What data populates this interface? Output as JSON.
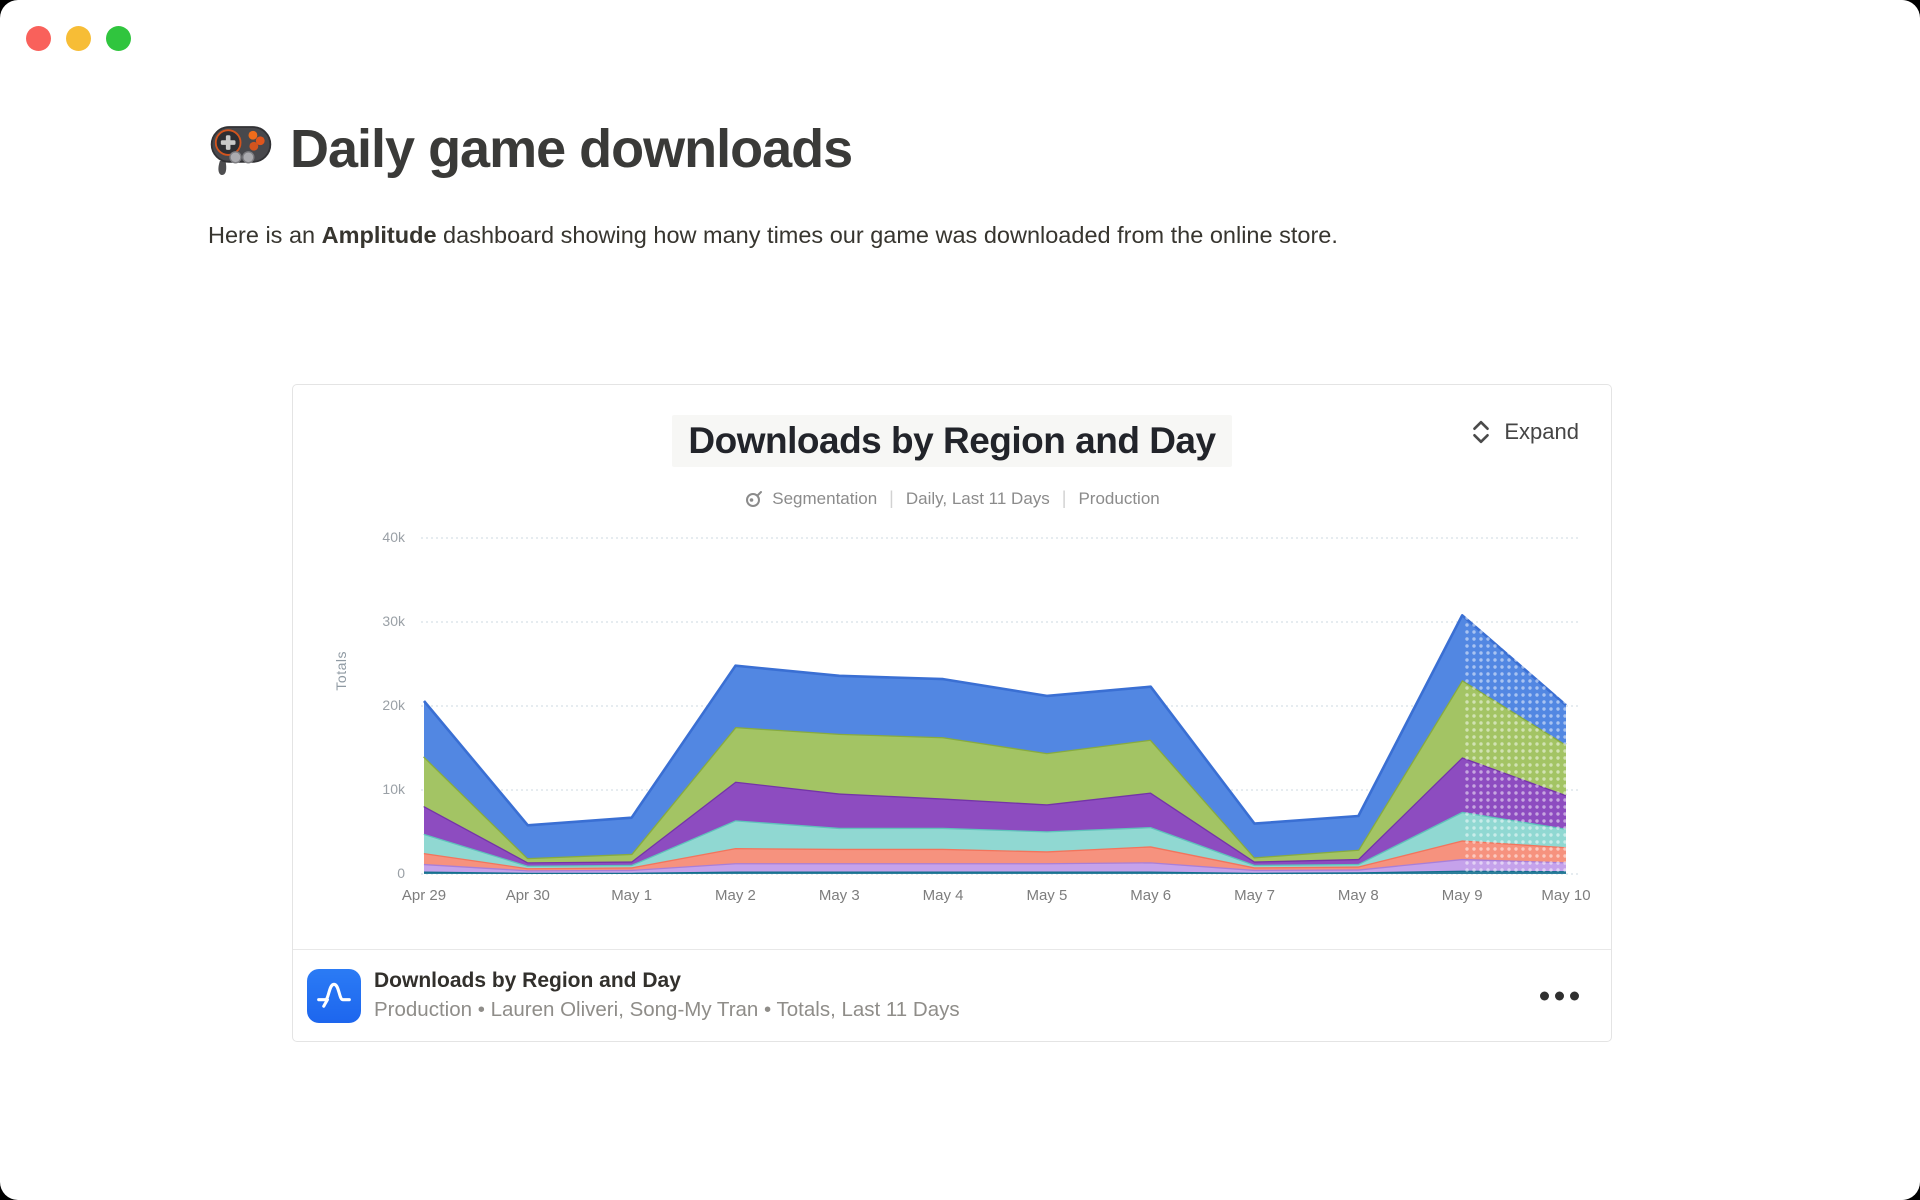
{
  "window": {
    "traffic_lights": [
      "close",
      "minimize",
      "zoom"
    ]
  },
  "page": {
    "title": "Daily game downloads",
    "title_emoji": "game-controller",
    "intro": {
      "prefix": "Here is an ",
      "bold": "Amplitude",
      "suffix": " dashboard showing how many times our game was downloaded from the online store."
    }
  },
  "card": {
    "expand_label": "Expand",
    "chart_title": "Downloads by Region and Day",
    "subtitle": {
      "icon": "segmentation-icon",
      "items": [
        "Segmentation",
        "Daily, Last 11 Days",
        "Production"
      ]
    },
    "footer": {
      "title": "Downloads by Region and Day",
      "meta": "Production • Lauren Oliveri, Song-My Tran • Totals, Last 11 Days"
    }
  },
  "chart_data": {
    "type": "area",
    "stacked": true,
    "title": "Downloads by Region and Day",
    "xlabel": "",
    "ylabel": "Totals",
    "ylim": [
      0,
      40000
    ],
    "yticks": [
      0,
      10000,
      20000,
      30000,
      40000
    ],
    "ytick_labels": [
      "0",
      "10k",
      "20k",
      "30k",
      "40k"
    ],
    "x": [
      "Apr 29",
      "Apr 30",
      "May 1",
      "May 2",
      "May 3",
      "May 4",
      "May 5",
      "May 6",
      "May 7",
      "May 8",
      "May 9",
      "May 10"
    ],
    "grid": "dotted-horizontal",
    "legend": "none",
    "last_segment_style": "dotted",
    "series": [
      {
        "name": "series-1-dark-teal",
        "fill": "#2d7f9b",
        "stroke": "#156e8d",
        "values": [
          300,
          150,
          150,
          300,
          300,
          300,
          300,
          300,
          150,
          200,
          400,
          350
        ]
      },
      {
        "name": "series-2-lavender",
        "fill": "#c5a2eb",
        "stroke": "#a87fd8",
        "values": [
          900,
          300,
          350,
          1000,
          1000,
          1000,
          1000,
          1100,
          350,
          350,
          1400,
          1050
        ]
      },
      {
        "name": "series-3-salmon",
        "fill": "#f6927e",
        "stroke": "#f3745c",
        "values": [
          1300,
          250,
          300,
          1800,
          1700,
          1700,
          1400,
          1900,
          300,
          350,
          2200,
          1800
        ]
      },
      {
        "name": "series-4-teal",
        "fill": "#90d8d2",
        "stroke": "#5fc3bb",
        "values": [
          2300,
          300,
          300,
          3300,
          2500,
          2500,
          2400,
          2300,
          300,
          300,
          3400,
          2200
        ]
      },
      {
        "name": "series-5-purple",
        "fill": "#8d4cc0",
        "stroke": "#7434a8",
        "values": [
          3300,
          400,
          400,
          4600,
          4100,
          3500,
          3200,
          4100,
          400,
          600,
          6500,
          4000
        ]
      },
      {
        "name": "series-6-green",
        "fill": "#a3c464",
        "stroke": "#87ab3f",
        "values": [
          5900,
          500,
          900,
          6500,
          7100,
          7300,
          6100,
          6300,
          500,
          1100,
          9200,
          6000
        ]
      },
      {
        "name": "series-7-blue",
        "fill": "#5287e2",
        "stroke": "#3a6fd3",
        "values": [
          6600,
          3900,
          4300,
          7300,
          6900,
          6900,
          6800,
          6300,
          4000,
          4000,
          7700,
          4700
        ]
      }
    ]
  }
}
